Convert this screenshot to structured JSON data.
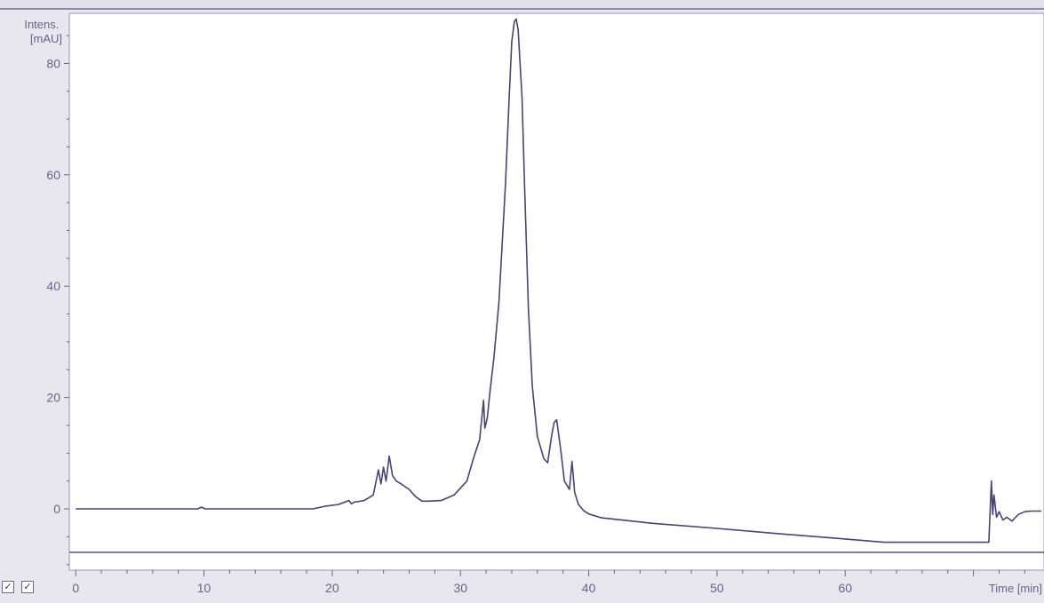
{
  "colors": {
    "frame": "#e9e6f0",
    "plot_background": "#ffffff",
    "trace": "#4a4270",
    "axis": "#6a6288",
    "text": "#6a6288"
  },
  "checkboxes": [
    {
      "checked": true,
      "icon": "checkmark-icon",
      "glyph": "✓"
    },
    {
      "checked": true,
      "icon": "checkmark-icon",
      "glyph": "✓"
    }
  ],
  "chart_data": {
    "type": "line",
    "title": "",
    "ylabel": "Intens.\n[mAU]",
    "ylabel_lines": [
      "Intens.",
      "[mAU]"
    ],
    "xlabel": "Time [min]",
    "xlim": [
      -0.5,
      75.5
    ],
    "ylim": [
      -11,
      89
    ],
    "x_ticks": [
      0,
      10,
      20,
      30,
      40,
      50,
      60
    ],
    "x_tick_labels": [
      "0",
      "10",
      "20",
      "30",
      "40",
      "50",
      "60"
    ],
    "y_ticks": [
      0,
      20,
      40,
      60,
      80
    ],
    "y_tick_labels": [
      "0",
      "20",
      "40",
      "60",
      "80"
    ],
    "grid": false,
    "legend": "none",
    "reference_line_y": -7.8,
    "series": [
      {
        "x": [
          0,
          9.5,
          9.8,
          10.1,
          18.5,
          19.5,
          20.5,
          21.3,
          21.5,
          21.7,
          22.5,
          23.2,
          23.6,
          23.8,
          24.0,
          24.2,
          24.45,
          24.7,
          25.0,
          25.5,
          26.0,
          26.5,
          27.0,
          27.5,
          28.5,
          29.5,
          30.5,
          31.0,
          31.5,
          31.8,
          31.9,
          32.1,
          32.3,
          32.6,
          33.0,
          33.5,
          33.8,
          34.0,
          34.2,
          34.35,
          34.5,
          34.6,
          34.8,
          35.0,
          35.3,
          35.6,
          36.0,
          36.5,
          36.8,
          37.1,
          37.3,
          37.5,
          37.8,
          38.1,
          38.5,
          38.7,
          38.9,
          39.2,
          39.6,
          40.0,
          41.0,
          45.0,
          50.0,
          55.0,
          60.0,
          63.0,
          65.0,
          67.0,
          70.0,
          71.2,
          71.4,
          71.5,
          71.6,
          71.8,
          72.0,
          72.3,
          72.6,
          73.0,
          73.5,
          74.0,
          74.5,
          75.3
        ],
        "y": [
          0,
          0,
          0.3,
          0,
          0,
          0.5,
          0.8,
          1.5,
          0.9,
          1.2,
          1.5,
          2.5,
          7.0,
          4.5,
          7.5,
          5.0,
          9.5,
          6.0,
          5.0,
          4.3,
          3.5,
          2.2,
          1.4,
          1.4,
          1.5,
          2.5,
          5.0,
          9.0,
          12.5,
          19.5,
          14.5,
          16.5,
          21.0,
          27.0,
          37.0,
          58.0,
          74.0,
          84.0,
          87.5,
          88.0,
          86.0,
          82.0,
          74.0,
          58.0,
          36.0,
          22.0,
          13.0,
          9.0,
          8.3,
          13.0,
          15.5,
          16.0,
          11.0,
          5.0,
          3.5,
          8.5,
          3.0,
          0.8,
          -0.3,
          -0.9,
          -1.6,
          -2.6,
          -3.5,
          -4.5,
          -5.4,
          -6.0,
          -6.0,
          -6.0,
          -6.0,
          -6.0,
          5.0,
          -1.0,
          2.5,
          -1.5,
          -0.5,
          -2.0,
          -1.5,
          -2.2,
          -1.0,
          -0.5,
          -0.4,
          -0.4
        ]
      }
    ]
  }
}
